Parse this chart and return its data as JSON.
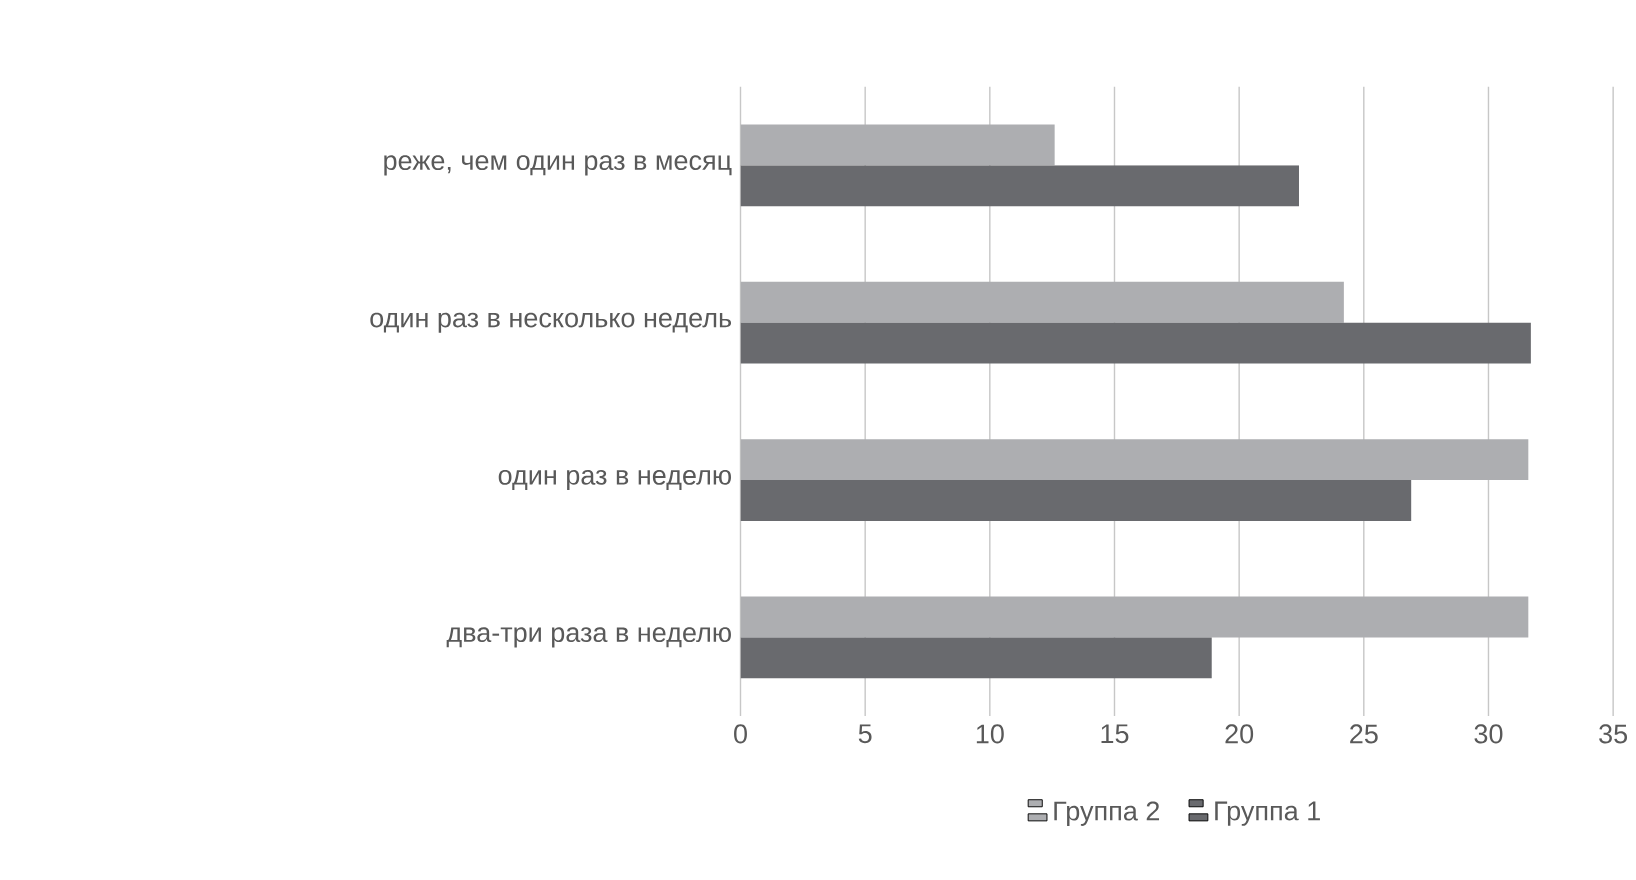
{
  "chart_data": {
    "type": "bar",
    "orientation": "horizontal",
    "categories": [
      "реже, чем один раз в месяц",
      "один раз в несколько недель",
      "один раз в неделю",
      "два-три раза в неделю"
    ],
    "series": [
      {
        "name": "Группа 2",
        "color": "#adaeb1",
        "values": [
          12.6,
          24.2,
          31.6,
          31.6
        ]
      },
      {
        "name": "Группа 1",
        "color": "#696a6e",
        "values": [
          22.4,
          31.7,
          26.9,
          18.9
        ]
      }
    ],
    "xlim": [
      0,
      35
    ],
    "xticks": [
      0,
      5,
      10,
      15,
      20,
      25,
      30,
      35
    ],
    "grid": "x",
    "legend": "bottom"
  }
}
